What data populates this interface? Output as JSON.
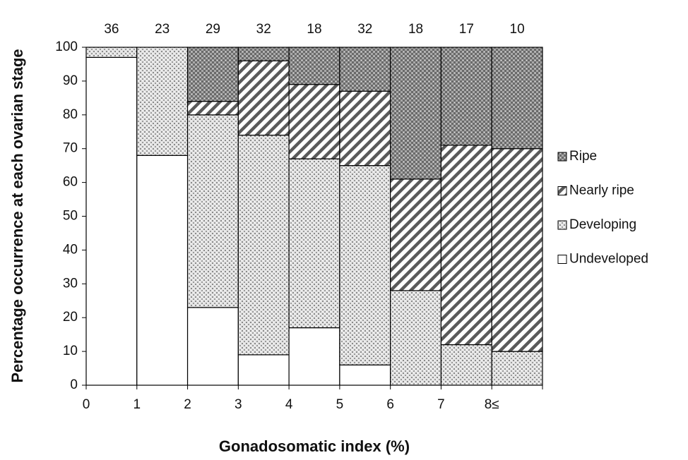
{
  "chart_data": {
    "type": "stacked_bar",
    "y_label": "Percentage occurrence at each ovarian stage",
    "x_label": "Gonadosomatic index (%)",
    "x_edge_labels": [
      "0",
      "1",
      "2",
      "3",
      "4",
      "5",
      "6",
      "7",
      "8≤"
    ],
    "counts": [
      36,
      23,
      29,
      32,
      18,
      32,
      18,
      17,
      10
    ],
    "series": [
      {
        "name": "Undeveloped",
        "pattern": "plain",
        "values": [
          97,
          68,
          23,
          9,
          17,
          6,
          0,
          0,
          0
        ]
      },
      {
        "name": "Developing",
        "pattern": "dots",
        "values": [
          3,
          32,
          57,
          65,
          50,
          59,
          28,
          12,
          10
        ]
      },
      {
        "name": "Nearly ripe",
        "pattern": "stripes",
        "values": [
          0,
          0,
          4,
          22,
          22,
          22,
          33,
          59,
          60
        ]
      },
      {
        "name": "Ripe",
        "pattern": "checks",
        "values": [
          0,
          0,
          16,
          4,
          11,
          13,
          39,
          29,
          30
        ]
      }
    ],
    "ylim": [
      0,
      100
    ],
    "yticks": [
      0,
      10,
      20,
      30,
      40,
      50,
      60,
      70,
      80,
      90,
      100
    ]
  }
}
